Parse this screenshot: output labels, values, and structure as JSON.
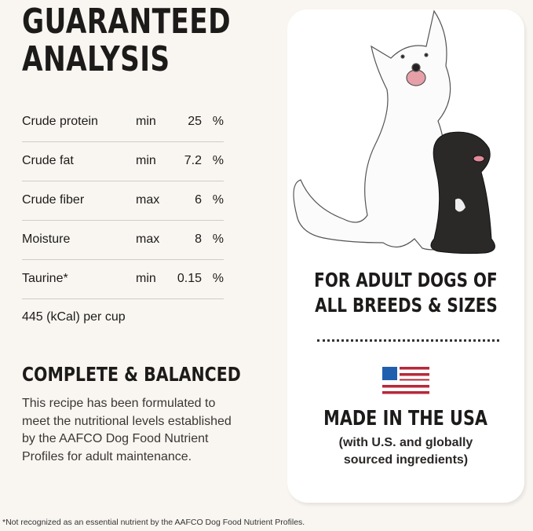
{
  "title": {
    "line1": "GUARANTEED",
    "line2": "ANALYSIS"
  },
  "analysis": [
    {
      "nutrient": "Crude protein",
      "qualifier": "min",
      "value": "25",
      "unit": "%"
    },
    {
      "nutrient": "Crude fat",
      "qualifier": "min",
      "value": "7.2",
      "unit": "%"
    },
    {
      "nutrient": "Crude fiber",
      "qualifier": "max",
      "value": "6",
      "unit": "%"
    },
    {
      "nutrient": "Moisture",
      "qualifier": "max",
      "value": "8",
      "unit": "%"
    },
    {
      "nutrient": "Taurine*",
      "qualifier": "min",
      "value": "0.15",
      "unit": "%"
    }
  ],
  "calories": "445 (kCal) per cup",
  "complete": {
    "title": "COMPLETE & BALANCED",
    "text": "This recipe has been formulated to meet the nutritional levels established by the AAFCO Dog Food Nutrient Profiles for adult maintenance."
  },
  "card": {
    "audience_line1": "FOR ADULT DOGS OF",
    "audience_line2": "ALL BREEDS & SIZES",
    "made_in": "MADE IN THE USA",
    "sourcing_line1": "(with U.S. and globally",
    "sourcing_line2": "sourced ingredients)",
    "flag_colors": {
      "blue": "#1f5fae",
      "red": "#b8283a"
    }
  },
  "footnote": "*Not recognized as an essential nutrient by the AAFCO Dog Food Nutrient Profiles."
}
